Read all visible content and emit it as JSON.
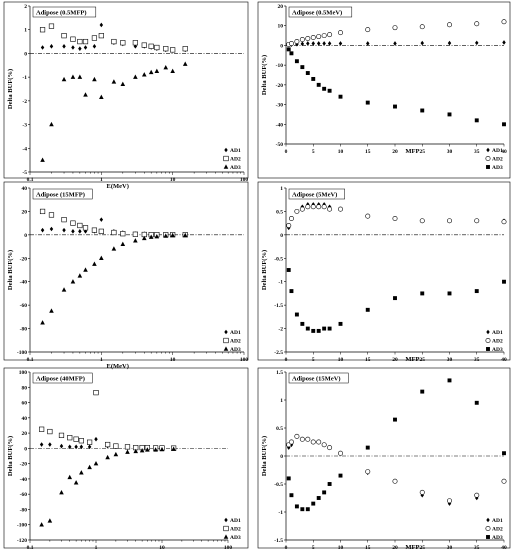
{
  "chart_data": [
    {
      "type": "scatter",
      "title": "Adipose (0.5MFP)",
      "xlabel": "E(MeV)",
      "ylabel": "Delta BUF(%)",
      "xscale": "log",
      "xlim": [
        0.1,
        100
      ],
      "ylim": [
        -5,
        2
      ],
      "xticks": [
        0.1,
        1,
        10,
        100
      ],
      "yticks": [
        -5,
        -4,
        -3,
        -2,
        -1,
        0,
        1,
        2
      ],
      "x": [
        0.15,
        0.2,
        0.3,
        0.4,
        0.5,
        0.6,
        0.8,
        1,
        1.5,
        2,
        3,
        4,
        5,
        6,
        8,
        10,
        15
      ],
      "series": [
        {
          "name": "AD1",
          "marker": "diamond",
          "values": [
            0.25,
            0.3,
            0.3,
            0.25,
            0.2,
            0.25,
            0.3,
            1.2,
            0.45,
            0.4,
            0.3,
            0.3,
            0.25,
            0.2,
            0.15,
            0.12,
            0.15
          ]
        },
        {
          "name": "AD2",
          "marker": "square-open",
          "values": [
            1.0,
            1.15,
            0.75,
            0.6,
            0.5,
            0.5,
            0.65,
            0.75,
            0.5,
            0.45,
            0.45,
            0.35,
            0.3,
            0.25,
            0.2,
            0.15,
            0.2
          ]
        },
        {
          "name": "AD3",
          "marker": "triangle",
          "values": [
            -4.5,
            -3.0,
            -1.1,
            -1.0,
            -1.0,
            -1.75,
            -1.1,
            -1.85,
            -1.2,
            -1.3,
            -1.0,
            -0.9,
            -0.8,
            -0.75,
            -0.6,
            -0.75,
            -0.45
          ]
        }
      ],
      "legend": "bottom-right"
    },
    {
      "type": "scatter",
      "title": "Adipose (0.5MeV)",
      "xlabel": "MFP",
      "ylabel": "Delta BUF(%)",
      "xlim": [
        0,
        40
      ],
      "ylim": [
        -50,
        20
      ],
      "xticks": [
        0,
        5,
        10,
        15,
        20,
        25,
        30,
        35,
        40
      ],
      "yticks": [
        -50,
        -40,
        -30,
        -20,
        -10,
        0,
        10,
        20
      ],
      "x": [
        0.5,
        1,
        2,
        3,
        4,
        5,
        6,
        7,
        8,
        10,
        15,
        20,
        25,
        30,
        35,
        40
      ],
      "series": [
        {
          "name": "AD1",
          "marker": "diamond",
          "values": [
            0.2,
            0.4,
            0.6,
            0.8,
            1.0,
            1.0,
            1.0,
            1.0,
            1.0,
            1.0,
            1.0,
            1.0,
            1.2,
            1.2,
            1.3,
            1.5
          ]
        },
        {
          "name": "AD2",
          "marker": "circle-open",
          "values": [
            0.5,
            1.0,
            2.0,
            3.0,
            3.5,
            4.0,
            4.5,
            5.0,
            5.5,
            6.5,
            8.0,
            9.0,
            9.5,
            10.5,
            11.0,
            12.0
          ]
        },
        {
          "name": "AD3",
          "marker": "square",
          "values": [
            -2,
            -4,
            -8,
            -11,
            -14,
            -17,
            -20,
            -22,
            -23,
            -26,
            -29,
            -31,
            -33,
            -35,
            -38,
            -40
          ]
        }
      ],
      "legend": "bottom-right"
    },
    {
      "type": "scatter",
      "title": "Adipose (15MFP)",
      "xlabel": "E(MeV)",
      "ylabel": "Delta BUF(%)",
      "xscale": "log",
      "xlim": [
        0.1,
        100
      ],
      "ylim": [
        -100,
        40
      ],
      "xticks": [
        0.1,
        1,
        10,
        100
      ],
      "yticks": [
        -100,
        -80,
        -60,
        -40,
        -20,
        0,
        20,
        40
      ],
      "x": [
        0.15,
        0.2,
        0.3,
        0.4,
        0.5,
        0.6,
        0.8,
        1,
        1.5,
        2,
        3,
        4,
        5,
        6,
        8,
        10,
        15
      ],
      "series": [
        {
          "name": "AD1",
          "marker": "diamond",
          "values": [
            4,
            5,
            4,
            3,
            3,
            3,
            3,
            13,
            3,
            2,
            1,
            1,
            0.5,
            0.5,
            0.3,
            0.2,
            0.2
          ]
        },
        {
          "name": "AD2",
          "marker": "square-open",
          "values": [
            20,
            17,
            13,
            10,
            8,
            6,
            4,
            3,
            2,
            1,
            0.5,
            0.3,
            0.2,
            0.2,
            0.1,
            0.1,
            0.1
          ]
        },
        {
          "name": "AD3",
          "marker": "triangle",
          "values": [
            -75,
            -65,
            -47,
            -40,
            -35,
            -30,
            -25,
            -20,
            -12,
            -8,
            -5,
            -3,
            -2,
            -1.5,
            -1,
            -0.5,
            -0.5
          ]
        }
      ],
      "legend": "bottom-right"
    },
    {
      "type": "scatter",
      "title": "Adipose (5MeV)",
      "xlabel": "MFP",
      "ylabel": "Delta BUF(%)",
      "xlim": [
        0,
        40
      ],
      "ylim": [
        -2.5,
        1
      ],
      "xticks": [
        0,
        5,
        10,
        15,
        20,
        25,
        30,
        35,
        40
      ],
      "yticks": [
        -2.5,
        -2,
        -1.5,
        -1,
        -0.5,
        0,
        0.5,
        1
      ],
      "x": [
        0.5,
        1,
        2,
        3,
        4,
        5,
        6,
        7,
        8,
        10,
        15,
        20,
        25,
        30,
        35,
        40
      ],
      "series": [
        {
          "name": "AD1",
          "marker": "diamond",
          "values": [
            0.15,
            0.35,
            0.5,
            0.6,
            0.65,
            0.65,
            0.65,
            0.65,
            0.6,
            0.55,
            0.4,
            0.35,
            0.3,
            0.3,
            0.3,
            0.3
          ]
        },
        {
          "name": "AD2",
          "marker": "circle-open",
          "values": [
            0.2,
            0.35,
            0.5,
            0.55,
            0.6,
            0.6,
            0.6,
            0.6,
            0.55,
            0.55,
            0.4,
            0.35,
            0.3,
            0.3,
            0.3,
            0.28
          ]
        },
        {
          "name": "AD3",
          "marker": "square",
          "values": [
            -0.75,
            -1.2,
            -1.7,
            -1.9,
            -2.0,
            -2.05,
            -2.05,
            -2.0,
            -2.0,
            -1.9,
            -1.6,
            -1.35,
            -1.25,
            -1.25,
            -1.2,
            -1.0
          ]
        }
      ],
      "legend": "bottom-right"
    },
    {
      "type": "scatter",
      "title": "Adipose (40MFP)",
      "xlabel": "E(MeV)",
      "ylabel": "Delta BUF(%)",
      "xscale": "log",
      "xlim": [
        0.1,
        100
      ],
      "ylim": [
        -120,
        100
      ],
      "xticks": [
        0.1,
        1,
        10,
        100
      ],
      "yticks": [
        -120,
        -100,
        -80,
        -60,
        -40,
        -20,
        0,
        20,
        40,
        60,
        80,
        100
      ],
      "x": [
        0.15,
        0.2,
        0.3,
        0.4,
        0.5,
        0.6,
        0.8,
        1,
        1.5,
        2,
        3,
        4,
        5,
        6,
        8,
        10,
        15
      ],
      "series": [
        {
          "name": "AD1",
          "marker": "diamond",
          "values": [
            5,
            5,
            3,
            2,
            2,
            2,
            2,
            12,
            3,
            2,
            1,
            1,
            1,
            0.5,
            0.5,
            0.3,
            0.3
          ]
        },
        {
          "name": "AD2",
          "marker": "square-open",
          "values": [
            25,
            22,
            17,
            14,
            12,
            10,
            8,
            73,
            5,
            3,
            2,
            1,
            1,
            1,
            0.5,
            0.5,
            0.3
          ]
        },
        {
          "name": "AD3",
          "marker": "triangle",
          "values": [
            -100,
            -95,
            -58,
            -38,
            -45,
            -32,
            -25,
            -20,
            -12,
            -8,
            -5,
            -4,
            -3,
            -2,
            -2,
            -1.5,
            -1
          ]
        }
      ],
      "legend": "bottom-right"
    },
    {
      "type": "scatter",
      "title": "Adipose (15MeV)",
      "xlabel": "MFP",
      "ylabel": "Delta BUF(%)",
      "xlim": [
        0,
        40
      ],
      "ylim": [
        -1.5,
        1.5
      ],
      "xticks": [
        0,
        5,
        10,
        15,
        20,
        25,
        30,
        35,
        40
      ],
      "yticks": [
        -1.5,
        -1,
        -0.5,
        0,
        0.5,
        1,
        1.5
      ],
      "x": [
        0.5,
        1,
        2,
        3,
        4,
        5,
        6,
        7,
        8,
        10,
        15,
        20,
        25,
        30,
        35,
        40
      ],
      "series": [
        {
          "name": "AD1",
          "marker": "diamond",
          "values": [
            0.15,
            0.2,
            0.35,
            0.3,
            0.3,
            0.25,
            0.25,
            0.2,
            0.15,
            0.05,
            -0.3,
            -0.45,
            -0.7,
            -0.85,
            -0.75,
            -0.45
          ]
        },
        {
          "name": "AD2",
          "marker": "circle-open",
          "values": [
            0.2,
            0.25,
            0.35,
            0.3,
            0.3,
            0.25,
            0.25,
            0.2,
            0.15,
            0.05,
            -0.28,
            -0.45,
            -0.65,
            -0.8,
            -0.7,
            -0.45
          ]
        },
        {
          "name": "AD3",
          "marker": "square",
          "values": [
            -0.4,
            -0.7,
            -0.9,
            -0.95,
            -0.95,
            -0.85,
            -0.75,
            -0.65,
            -0.5,
            -0.35,
            0.15,
            0.65,
            1.15,
            1.35,
            0.95,
            0.05
          ]
        }
      ],
      "legend": "bottom-right"
    }
  ]
}
